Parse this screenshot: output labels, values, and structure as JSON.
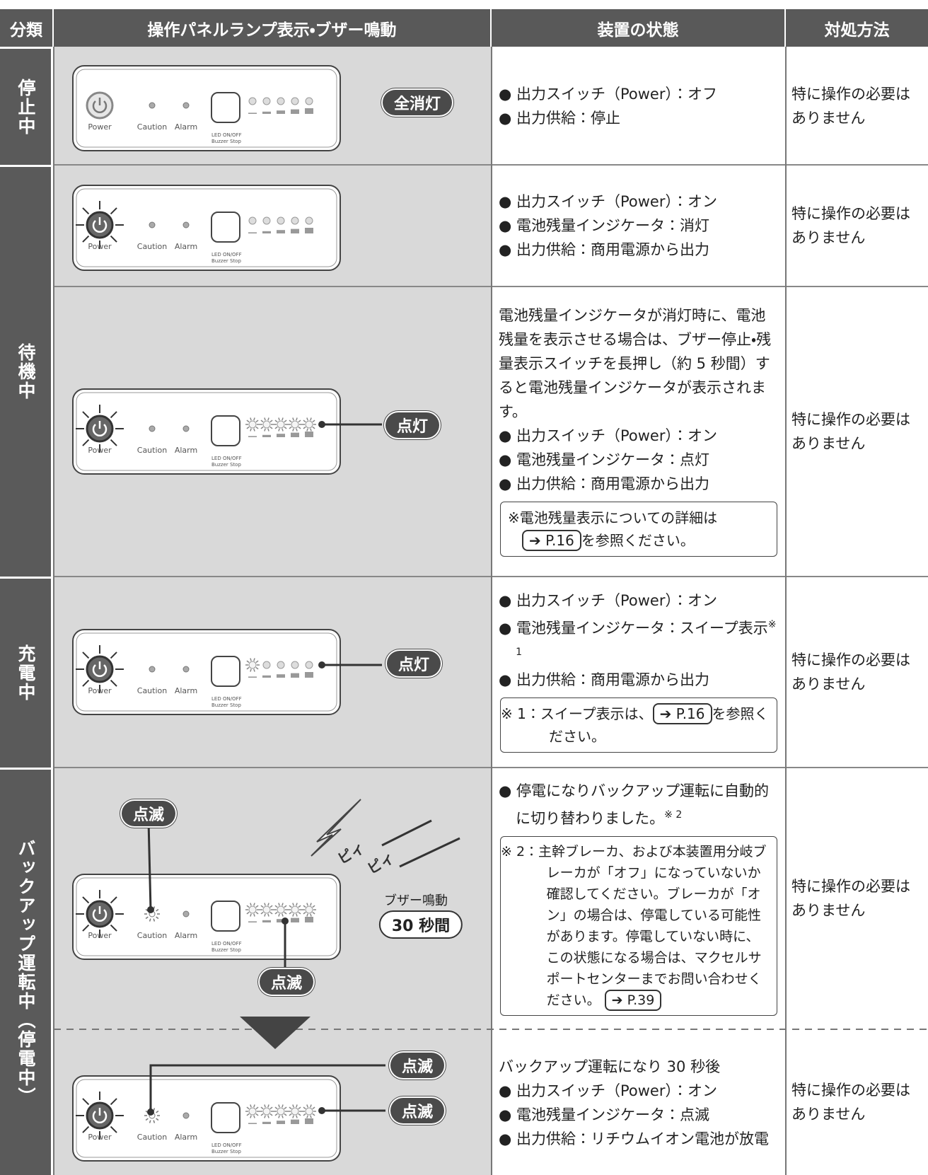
{
  "header": [
    "分類",
    "操作パネルランプ表示・ブザー鳴動",
    "装置の状態",
    "対処方法"
  ],
  "panel_labels": {
    "power": "Power",
    "caution": "Caution",
    "alarm": "Alarm",
    "led": "LED ON/OFF",
    "buzzer": "Buzzer Stop"
  },
  "categories": [
    "停止中",
    "待機中",
    "充電中",
    "バックアップ運転中（停電中）"
  ],
  "rows": [
    {
      "callouts": [
        "全消灯"
      ],
      "state": [
        "● 出力スイッチ（Power）：オフ",
        "● 出力供給：停止"
      ],
      "action": "特に操作の必要はありません"
    },
    {
      "state": [
        "● 出力スイッチ（Power）：オン",
        "● 電池残量インジケータ：消灯",
        "● 出力供給：商用電源から出力"
      ],
      "action": "特に操作の必要はありません"
    },
    {
      "callouts": [
        "点灯"
      ],
      "intro": "電池残量インジケータが消灯時に、電池残量を表示させる場合は、ブザー停止・残量表示スイッチを長押し（約 5 秒間）すると電池残量インジケータが表示されます。",
      "state": [
        "● 出力スイッチ（Power）：オン",
        "● 電池残量インジケータ：点灯",
        "● 出力供給：商用電源から出力"
      ],
      "note": {
        "text": "※電池残量表示についての詳細は",
        "link": "➔ P.16",
        "after": "を参照ください。"
      },
      "action": "特に操作の必要はありません"
    },
    {
      "callouts": [
        "点灯"
      ],
      "state": [
        "● 出力スイッチ（Power）：オン",
        "● 電池残量インジケータ：スイープ表示",
        "● 出力供給：商用電源から出力"
      ],
      "state_sup": "※ 1",
      "note": {
        "text": "※ 1：スイープ表示は、",
        "link": "➔ P.16",
        "after": "を参照ください。"
      },
      "action": "特に操作の必要はありません"
    },
    {
      "callouts": [
        "点滅",
        "点滅"
      ],
      "sound": [
        "ピィ",
        "ピィ"
      ],
      "buzzer": "ブザー鳴動",
      "duration": "30 秒間",
      "state": [
        "● 停電になりバックアップ運転に自動的に切り替わりました。"
      ],
      "state_sup": "※ 2",
      "note": {
        "text": "※ 2：主幹ブレーカ、および本装置用分岐ブレーカが「オフ」になっていないか確認してください。ブレーカが「オン」の場合は、停電している可能性があります。停電していない時に、この状態になる場合は、マクセルサポートセンターまでお問い合わせください。",
        "link": "➔ P.39"
      },
      "action": "特に操作の必要はありません"
    },
    {
      "callouts": [
        "点滅",
        "点滅"
      ],
      "intro": "バックアップ運転になり 30 秒後",
      "state": [
        "● 出力スイッチ（Power）：オン",
        "● 電池残量インジケータ：点滅",
        "● 出力供給：リチウムイオン電池が放電"
      ],
      "action": "特に操作の必要はありません"
    }
  ]
}
